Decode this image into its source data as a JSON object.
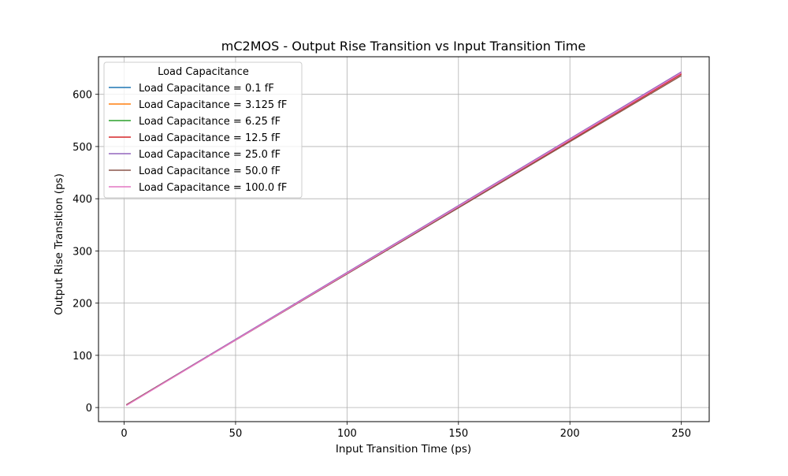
{
  "chart_data": {
    "type": "line",
    "title": "mC2MOS - Output Rise Transition vs Input Transition Time",
    "xlabel": "Input Transition Time (ps)",
    "ylabel": "Output Rise Transition (ps)",
    "xlim": [
      -11.5,
      262.5
    ],
    "ylim": [
      -27,
      672
    ],
    "xticks": [
      0,
      50,
      100,
      150,
      200,
      250
    ],
    "yticks": [
      0,
      100,
      200,
      300,
      400,
      500,
      600
    ],
    "grid": true,
    "legend": {
      "title": "Load Capacitance",
      "placement": "top-left"
    },
    "x": [
      1,
      250
    ],
    "series": [
      {
        "name": "Load Capacitance = 0.1 fF",
        "color": "#1f77b4",
        "values": [
          5,
          640
        ]
      },
      {
        "name": "Load Capacitance = 3.125 fF",
        "color": "#ff7f0e",
        "values": [
          5,
          640
        ]
      },
      {
        "name": "Load Capacitance = 6.25 fF",
        "color": "#2ca02c",
        "values": [
          5,
          640
        ]
      },
      {
        "name": "Load Capacitance = 12.5 fF",
        "color": "#d62728",
        "values": [
          5,
          639
        ]
      },
      {
        "name": "Load Capacitance = 25.0 fF",
        "color": "#9467bd",
        "values": [
          5,
          643
        ]
      },
      {
        "name": "Load Capacitance = 50.0 fF",
        "color": "#8c564b",
        "values": [
          5,
          636
        ]
      },
      {
        "name": "Load Capacitance = 100.0 fF",
        "color": "#e377c2",
        "values": [
          4,
          641
        ]
      }
    ]
  }
}
